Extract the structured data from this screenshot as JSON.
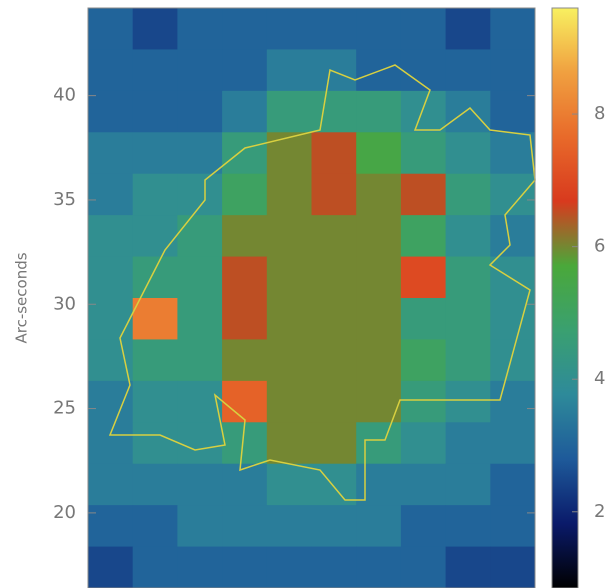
{
  "chart_data": {
    "type": "heatmap",
    "y_label": "Arc-seconds",
    "ylim": [
      16.4,
      44.2
    ],
    "yticks": [
      20,
      25,
      30,
      35,
      40
    ],
    "zlim": [
      0.85,
      9.6
    ],
    "colorbar_ticks": [
      2,
      4,
      6,
      8
    ],
    "colormap": [
      "#000000",
      "#0a1a6a",
      "#1e5a9a",
      "#2e8a9a",
      "#3aa070",
      "#4aa83a",
      "#d83a1e",
      "#e86a2a",
      "#f0a040",
      "#f8f060"
    ],
    "z": [
      [
        3,
        2.5,
        3,
        3,
        3,
        3,
        3,
        3,
        2.5,
        3
      ],
      [
        3,
        3,
        3,
        3,
        3.5,
        3.5,
        3,
        3,
        3,
        3
      ],
      [
        3,
        3,
        3,
        3.5,
        4.5,
        4.5,
        4.5,
        4,
        3.5,
        3
      ],
      [
        3.5,
        3.5,
        3.5,
        4.5,
        6,
        6.5,
        5.5,
        4.5,
        4,
        3.5
      ],
      [
        3.5,
        4,
        4,
        5,
        6,
        6.5,
        6,
        6.5,
        4.5,
        4
      ],
      [
        4,
        4,
        4.5,
        6,
        6,
        6,
        6,
        5,
        4,
        3.5
      ],
      [
        4,
        4.5,
        4.5,
        6.5,
        6,
        6,
        6,
        7,
        4.5,
        4
      ],
      [
        4,
        8,
        4.5,
        6.5,
        6,
        6,
        6,
        4.5,
        4.5,
        4
      ],
      [
        4,
        4.5,
        4.5,
        6,
        6,
        6,
        6,
        5,
        4.5,
        4
      ],
      [
        3.5,
        4,
        4,
        7.5,
        6,
        6,
        6,
        4.5,
        4,
        3.5
      ],
      [
        3.5,
        4,
        4,
        4.5,
        6,
        6,
        4.5,
        4,
        3.5,
        3.5
      ],
      [
        3.5,
        3.5,
        3.5,
        3.5,
        4,
        4,
        3.5,
        3.5,
        3.5,
        3
      ],
      [
        3,
        3,
        3.5,
        3.5,
        3.5,
        3.5,
        3.5,
        3,
        3,
        3
      ],
      [
        2.5,
        3,
        3,
        3,
        3,
        3,
        3,
        3,
        2.5,
        2.5
      ]
    ]
  }
}
